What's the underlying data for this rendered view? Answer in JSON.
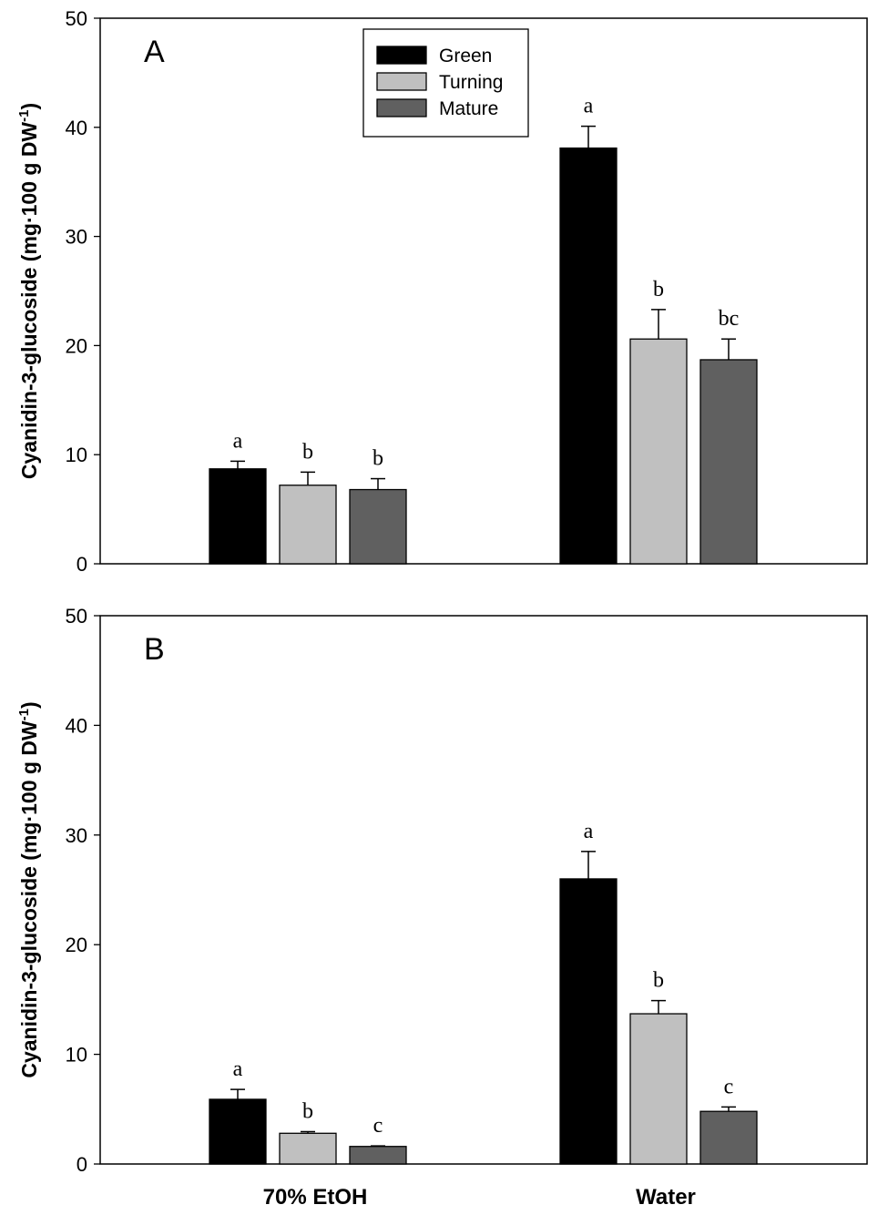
{
  "chart_data": [
    {
      "type": "bar",
      "panel": "A",
      "categories": [
        "70% EtOH",
        "Water"
      ],
      "series": [
        {
          "name": "Green",
          "color": "#000000",
          "values": [
            8.7,
            38.1
          ],
          "errors": [
            0.7,
            2.0
          ],
          "letters": [
            "a",
            "a"
          ]
        },
        {
          "name": "Turning",
          "color": "#c0c0c0",
          "values": [
            7.2,
            20.6
          ],
          "errors": [
            1.2,
            2.7
          ],
          "letters": [
            "b",
            "b"
          ]
        },
        {
          "name": "Mature",
          "color": "#606060",
          "values": [
            6.8,
            18.7
          ],
          "errors": [
            1.0,
            1.9
          ],
          "letters": [
            "b",
            "bc"
          ]
        }
      ],
      "ylim": [
        0,
        50
      ],
      "yticks": [
        0,
        10,
        20,
        30,
        40,
        50
      ],
      "ylabel": "Cyanidin-3-glucoside (mg·100 g DW",
      "ylabel_sup": "-1",
      "ylabel_close": ")",
      "legend": {
        "entries": [
          "Green",
          "Turning",
          "Mature"
        ],
        "placement": "top-center"
      }
    },
    {
      "type": "bar",
      "panel": "B",
      "categories": [
        "70% EtOH",
        "Water"
      ],
      "series": [
        {
          "name": "Green",
          "color": "#000000",
          "values": [
            5.9,
            26.0
          ],
          "errors": [
            0.9,
            2.5
          ],
          "letters": [
            "a",
            "a"
          ]
        },
        {
          "name": "Turning",
          "color": "#c0c0c0",
          "values": [
            2.8,
            13.7
          ],
          "errors": [
            0.15,
            1.2
          ],
          "letters": [
            "b",
            "b"
          ]
        },
        {
          "name": "Mature",
          "color": "#606060",
          "values": [
            1.6,
            4.8
          ],
          "errors": [
            0.05,
            0.4
          ],
          "letters": [
            "c",
            "c"
          ]
        }
      ],
      "ylim": [
        0,
        50
      ],
      "yticks": [
        0,
        10,
        20,
        30,
        40,
        50
      ],
      "ylabel": "Cyanidin-3-glucoside (mg·100 g DW",
      "ylabel_sup": "-1",
      "ylabel_close": ")",
      "legend": null
    }
  ],
  "x_labels": [
    "70% EtOH",
    "Water"
  ]
}
